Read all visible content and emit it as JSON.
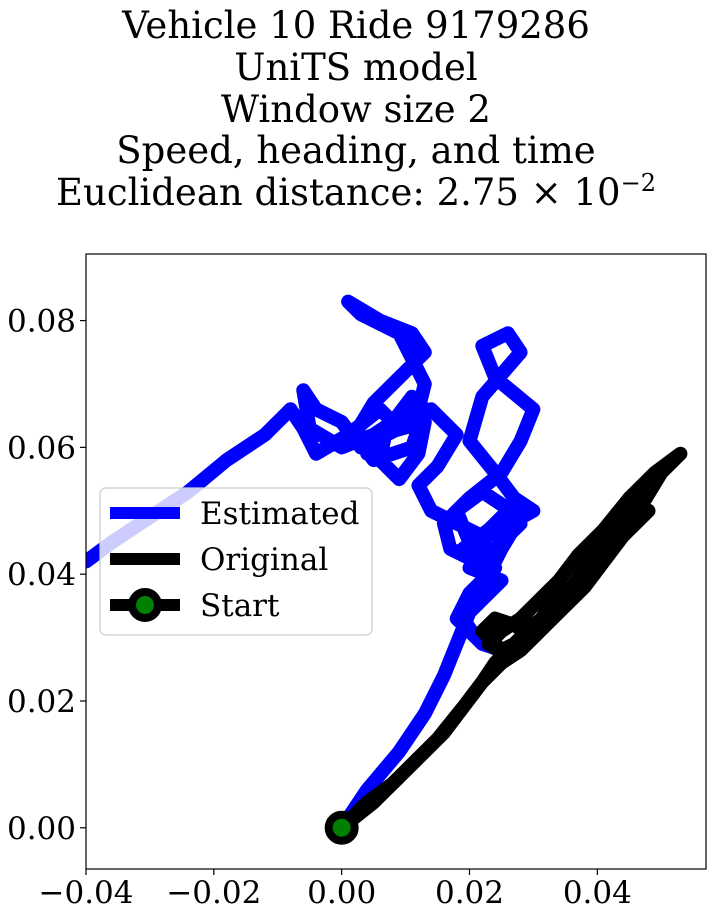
{
  "chart_data": {
    "type": "line",
    "title_lines": [
      "Vehicle 10 Ride 9179286",
      "UniTS model",
      "Window size 2",
      "Speed, heading, and time"
    ],
    "distance_label": "Euclidean distance: 2.75",
    "distance_times": "× 10",
    "distance_exponent": "−2",
    "xlim": [
      -0.04,
      0.057
    ],
    "ylim": [
      -0.0065,
      0.0905
    ],
    "xticks": [
      -0.04,
      -0.02,
      0.0,
      0.02,
      0.04
    ],
    "xtick_labels": [
      "−0.04",
      "−0.02",
      "0.00",
      "0.02",
      "0.04"
    ],
    "yticks": [
      0.0,
      0.02,
      0.04,
      0.06,
      0.08
    ],
    "ytick_labels": [
      "0.00",
      "0.02",
      "0.04",
      "0.06",
      "0.08"
    ],
    "grid": false,
    "legend_position": "center-left",
    "series": [
      {
        "name": "Estimated",
        "color": "#0000ff",
        "x": [
          0.0,
          0.004,
          0.009,
          0.013,
          0.016,
          0.018,
          0.02,
          0.022,
          0.023,
          0.017,
          0.016,
          0.02,
          0.025,
          0.028,
          0.03,
          0.024,
          0.022,
          0.026,
          0.028,
          0.022,
          0.02,
          0.024,
          0.027,
          0.03,
          0.021,
          0.019,
          0.023,
          0.026,
          0.028,
          0.023,
          0.02,
          0.025,
          0.022,
          0.019,
          0.021,
          0.025,
          0.022,
          0.018,
          0.02,
          0.023,
          0.025,
          0.028,
          0.022,
          0.018,
          0.02,
          0.024,
          0.022,
          0.014,
          0.012,
          0.015,
          0.018,
          0.014,
          0.007,
          0.006,
          0.009,
          0.012,
          0.013,
          0.006,
          0.004,
          0.008,
          0.011,
          0.013,
          0.011,
          0.005,
          0.002,
          0.005,
          0.01,
          0.013,
          0.011,
          0.006,
          0.001,
          0.003,
          0.009,
          0.011,
          0.013,
          0.012,
          0.009,
          0.003,
          0.0,
          -0.004,
          -0.006,
          -0.005,
          0.0,
          0.005,
          0.008,
          0.006,
          0.001,
          -0.004,
          -0.006,
          -0.008,
          -0.012,
          -0.018,
          -0.024,
          -0.03,
          -0.036,
          -0.04
        ],
        "y": [
          0.0,
          0.006,
          0.012,
          0.018,
          0.024,
          0.029,
          0.034,
          0.038,
          0.041,
          0.044,
          0.048,
          0.052,
          0.056,
          0.061,
          0.066,
          0.071,
          0.076,
          0.078,
          0.075,
          0.068,
          0.061,
          0.056,
          0.052,
          0.05,
          0.045,
          0.044,
          0.047,
          0.05,
          0.048,
          0.043,
          0.041,
          0.039,
          0.036,
          0.033,
          0.03,
          0.028,
          0.029,
          0.033,
          0.037,
          0.04,
          0.044,
          0.049,
          0.053,
          0.05,
          0.045,
          0.041,
          0.046,
          0.05,
          0.054,
          0.057,
          0.062,
          0.066,
          0.063,
          0.058,
          0.055,
          0.059,
          0.064,
          0.062,
          0.059,
          0.064,
          0.068,
          0.066,
          0.06,
          0.058,
          0.062,
          0.067,
          0.072,
          0.075,
          0.078,
          0.08,
          0.083,
          0.081,
          0.078,
          0.074,
          0.07,
          0.066,
          0.063,
          0.06,
          0.064,
          0.066,
          0.069,
          0.063,
          0.06,
          0.062,
          0.064,
          0.066,
          0.062,
          0.059,
          0.063,
          0.066,
          0.062,
          0.058,
          0.053,
          0.049,
          0.045,
          0.042
        ]
      },
      {
        "name": "Original",
        "color": "#000000",
        "x": [
          0.0,
          0.005,
          0.01,
          0.015,
          0.019,
          0.022,
          0.025,
          0.028,
          0.03,
          0.027,
          0.024,
          0.022,
          0.025,
          0.029,
          0.032,
          0.036,
          0.039,
          0.043,
          0.047,
          0.05,
          0.053,
          0.049,
          0.045,
          0.041,
          0.037,
          0.034,
          0.031,
          0.028,
          0.025,
          0.023,
          0.026,
          0.03,
          0.034,
          0.038,
          0.041,
          0.044,
          0.048,
          0.045,
          0.041,
          0.038,
          0.034,
          0.03,
          0.027,
          0.024,
          0.022,
          0.019,
          0.016,
          0.012,
          0.008,
          0.004,
          0.001
        ],
        "y": [
          0.0,
          0.004,
          0.009,
          0.014,
          0.019,
          0.023,
          0.026,
          0.028,
          0.03,
          0.032,
          0.033,
          0.031,
          0.028,
          0.03,
          0.034,
          0.038,
          0.042,
          0.046,
          0.051,
          0.056,
          0.059,
          0.056,
          0.052,
          0.047,
          0.043,
          0.039,
          0.036,
          0.033,
          0.031,
          0.029,
          0.027,
          0.03,
          0.034,
          0.038,
          0.042,
          0.046,
          0.05,
          0.047,
          0.043,
          0.039,
          0.035,
          0.032,
          0.029,
          0.026,
          0.023,
          0.019,
          0.015,
          0.011,
          0.007,
          0.004,
          0.001
        ]
      }
    ],
    "start": {
      "name": "Start",
      "x": 0.0,
      "y": 0.0,
      "marker_edge_color": "#000000",
      "marker_face_color": "#008000"
    },
    "legend_entries": [
      "Estimated",
      "Original",
      "Start"
    ]
  }
}
